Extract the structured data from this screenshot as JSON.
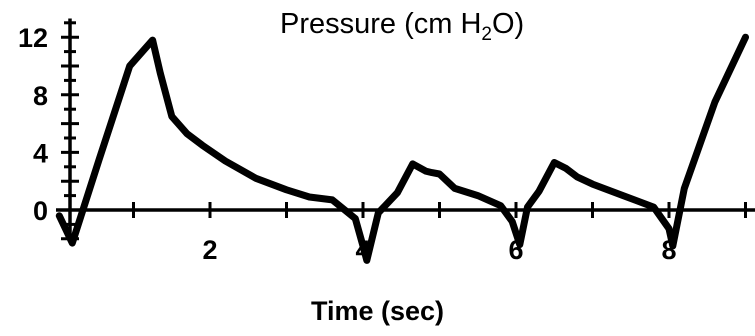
{
  "chart_data": {
    "type": "line",
    "title_main": "Pressure (cm H",
    "title_sub": "2",
    "title_tail": "O)",
    "xlabel": "Time (sec)",
    "ylabel": "",
    "xlim": [
      0,
      9
    ],
    "ylim": [
      -2,
      13
    ],
    "x_ticks_labeled": [
      "2",
      "4",
      "6",
      "8"
    ],
    "x_tick_values": [
      2,
      4,
      6,
      8
    ],
    "y_ticks_labeled": [
      "12",
      "8",
      "4",
      "0"
    ],
    "y_tick_values": [
      12,
      8,
      4,
      0
    ],
    "grid": false,
    "series": [
      {
        "color": "#000000",
        "x": [
          0.03,
          0.2,
          0.55,
          0.95,
          1.25,
          1.35,
          1.5,
          1.7,
          1.9,
          2.2,
          2.6,
          3.0,
          3.3,
          3.6,
          3.9,
          4.0,
          4.05,
          4.2,
          4.45,
          4.65,
          4.82,
          4.9,
          5.0,
          5.2,
          5.5,
          5.8,
          5.95,
          6.05,
          6.15,
          6.3,
          6.5,
          6.65,
          6.8,
          7.0,
          7.4,
          7.8,
          8.0,
          8.05,
          8.2,
          8.6,
          9.0
        ],
        "y": [
          -0.4,
          -2.3,
          3.5,
          10.0,
          11.8,
          9.5,
          6.5,
          5.3,
          4.5,
          3.4,
          2.2,
          1.4,
          0.9,
          0.7,
          -0.6,
          -2.5,
          -3.5,
          -0.2,
          1.2,
          3.2,
          2.7,
          2.6,
          2.5,
          1.5,
          1.0,
          0.3,
          -0.8,
          -2.4,
          0.2,
          1.3,
          3.3,
          2.9,
          2.3,
          1.8,
          1.0,
          0.2,
          -1.3,
          -2.5,
          1.5,
          7.5,
          12.0
        ]
      }
    ]
  }
}
